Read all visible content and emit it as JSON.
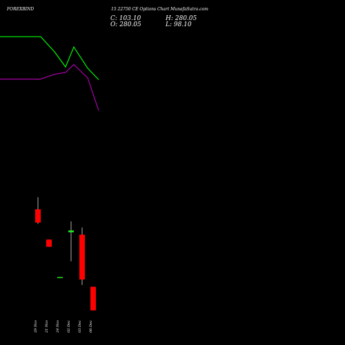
{
  "header": {
    "symbol": "FOREXBIND",
    "subtitle": "15 22750 CE Options Chart MunafaSutra.com",
    "close": "C: 103.10",
    "high": "H: 280.05",
    "open": "O: 280.05",
    "low": "L: 98.10"
  },
  "colors": {
    "background": "#000000",
    "up": "#22ee22",
    "down": "#ff0000",
    "ma_fast": "#00ff00",
    "ma_slow": "#aa00aa",
    "wick": "#dddddd",
    "text": "#ffffff"
  },
  "chart_data": {
    "type": "candlestick",
    "xlabel": "",
    "ylabel": "",
    "categories": [
      "29 Nov",
      "21 Nov",
      "24 Nov",
      "02 Dec",
      "03 Dec",
      "06 Dec"
    ],
    "candles": [
      {
        "date": "29 Nov",
        "open": 220,
        "high": 240,
        "low": 196,
        "close": 198,
        "direction": "down"
      },
      {
        "date": "21 Nov",
        "open": 170,
        "high": 170,
        "low": 158,
        "close": 158,
        "direction": "down"
      },
      {
        "date": "24 Nov",
        "open": 108,
        "high": 108,
        "low": 108,
        "close": 108,
        "direction": "flat"
      },
      {
        "date": "02 Dec",
        "open": 182,
        "high": 200,
        "low": 134,
        "close": 185,
        "direction": "up"
      },
      {
        "date": "03 Dec",
        "open": 178,
        "high": 190,
        "low": 95,
        "close": 104,
        "direction": "down"
      },
      {
        "date": "06 Dec",
        "open": 92,
        "high": 92,
        "low": 53,
        "close": 53,
        "direction": "down"
      }
    ],
    "series": [
      {
        "type": "line",
        "color": "#00ff00",
        "points": [
          [
            -0.25,
            505
          ],
          [
            0.25,
            505
          ],
          [
            1.5,
            480
          ],
          [
            2.5,
            455
          ],
          [
            3.25,
            488
          ],
          [
            4.5,
            453
          ],
          [
            5.5,
            434
          ]
        ]
      },
      {
        "type": "line",
        "color": "#aa00aa",
        "points": [
          [
            -0.25,
            435
          ],
          [
            0.25,
            435
          ],
          [
            1.5,
            443
          ],
          [
            2.5,
            446
          ],
          [
            3.25,
            459
          ],
          [
            4.5,
            437
          ],
          [
            5.5,
            383
          ]
        ]
      }
    ],
    "ylim": [
      30,
      520
    ]
  }
}
